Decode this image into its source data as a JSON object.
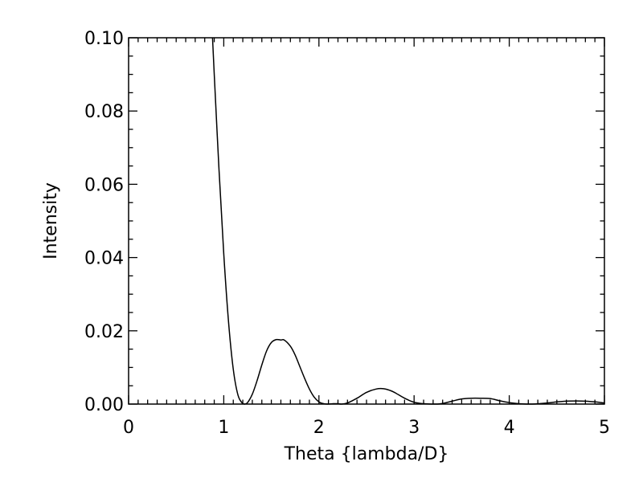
{
  "chart_data": {
    "type": "line",
    "title": "",
    "xlabel": "Theta {lambda/D}",
    "ylabel": "Intensity",
    "xlim": [
      0,
      5
    ],
    "ylim": [
      0,
      0.1
    ],
    "x_major_ticks": [
      0,
      1,
      2,
      3,
      4,
      5
    ],
    "x_tick_labels": [
      "0",
      "1",
      "2",
      "3",
      "4",
      "5"
    ],
    "x_minor_step": 0.1,
    "y_major_ticks": [
      0,
      0.02,
      0.04,
      0.06,
      0.08,
      0.1
    ],
    "y_tick_labels": [
      "0.00",
      "0.02",
      "0.04",
      "0.06",
      "0.08",
      "0.10"
    ],
    "y_minor_step": 0.005,
    "grid": false,
    "legend": "none",
    "line_color": "#000000",
    "series": [
      {
        "x": [
          0.88,
          0.9,
          0.95,
          1.0,
          1.05,
          1.1,
          1.15,
          1.2,
          1.22,
          1.25,
          1.3,
          1.35,
          1.4,
          1.45,
          1.5,
          1.55,
          1.6,
          1.635,
          1.7,
          1.75,
          1.8,
          1.85,
          1.9,
          1.95,
          2.0,
          2.05,
          2.1,
          2.15,
          2.2,
          2.233,
          2.3,
          2.4,
          2.5,
          2.6,
          2.679,
          2.75,
          2.8,
          2.9,
          3.0,
          3.1,
          3.2,
          3.238,
          3.3,
          3.4,
          3.5,
          3.6,
          3.699,
          3.8,
          3.9,
          4.0,
          4.1,
          4.2,
          4.241,
          4.3,
          4.4,
          4.5,
          4.6,
          4.71,
          4.8,
          4.9,
          5.0
        ],
        "y": [
          0.101,
          0.09,
          0.064,
          0.041,
          0.0225,
          0.0095,
          0.0024,
          0.00012,
          0.0,
          0.0004,
          0.0027,
          0.0064,
          0.0107,
          0.0145,
          0.0168,
          0.0176,
          0.0175,
          0.0175,
          0.0158,
          0.0134,
          0.0102,
          0.007,
          0.0041,
          0.0019,
          0.0006,
          0.0001,
          0.0,
          0.0001,
          0.0001,
          0.0,
          0.0003,
          0.0016,
          0.0032,
          0.0041,
          0.0042,
          0.0037,
          0.0031,
          0.0016,
          0.0005,
          0.0001,
          0.0,
          0.0,
          0.00017,
          0.0008,
          0.0014,
          0.0016,
          0.0016,
          0.0015,
          0.0009,
          0.0004,
          0.0001,
          0.0,
          0.0,
          8e-05,
          0.0003,
          0.0006,
          0.0008,
          0.00085,
          0.0008,
          0.0006,
          0.0003
        ]
      }
    ]
  }
}
